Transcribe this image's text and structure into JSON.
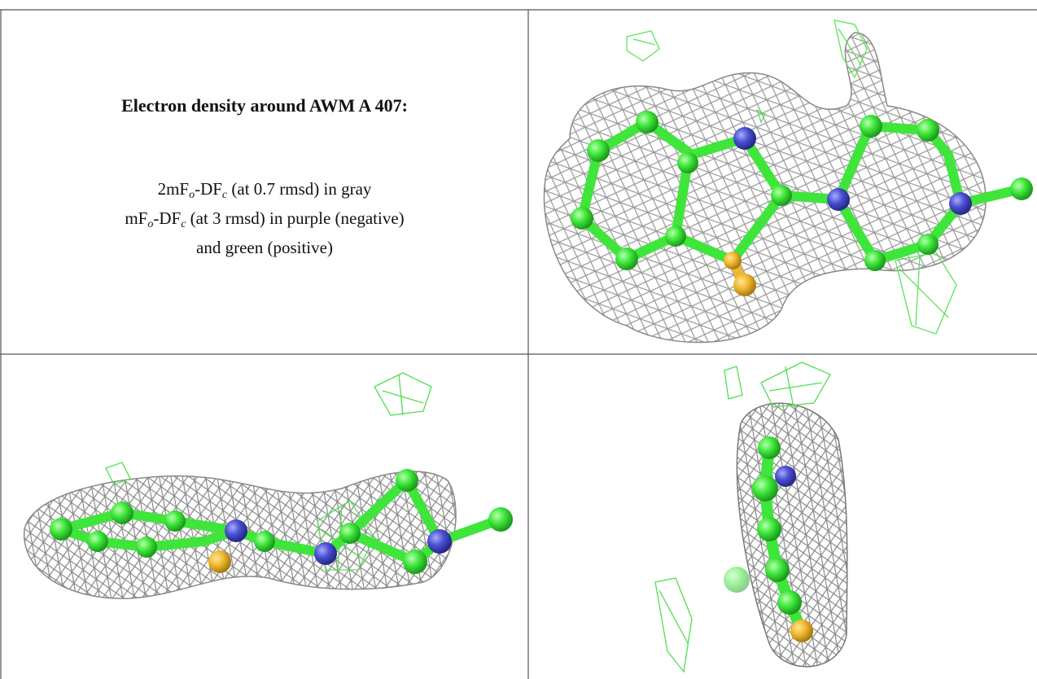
{
  "caption": {
    "title": "Electron density around AWM A 407:",
    "lines": [
      [
        "2mF",
        "o",
        "-DF",
        "c",
        " (at 0.7 rmsd) in gray"
      ],
      [
        "mF",
        "o",
        "-DF",
        "c",
        " (at 3 rmsd) in purple (negative)"
      ],
      [
        "and green (positive)"
      ]
    ]
  }
}
